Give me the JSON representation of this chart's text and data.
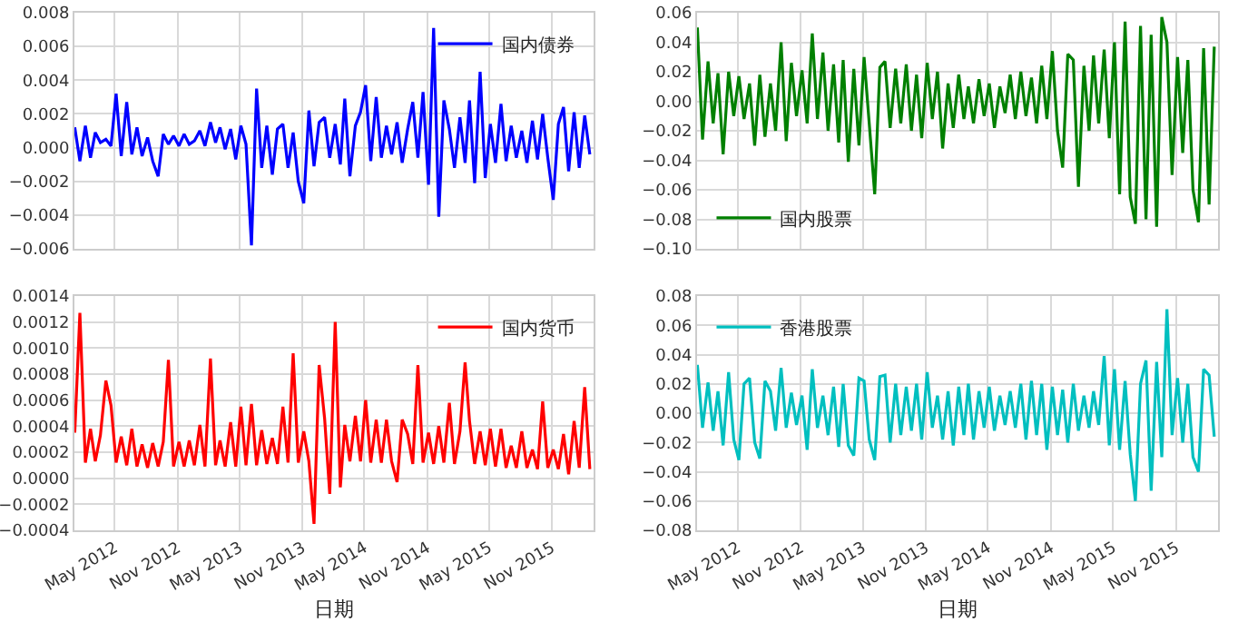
{
  "chart_data": [
    {
      "type": "line",
      "x": [
        "2012-01-05",
        "2012-01-20",
        "2012-02-05",
        "2012-02-20",
        "2012-03-05",
        "2012-03-20",
        "2012-04-05",
        "2012-04-20",
        "2012-05-05",
        "2012-05-20",
        "2012-06-05",
        "2012-06-20",
        "2012-07-05",
        "2012-07-20",
        "2012-08-05",
        "2012-08-20",
        "2012-09-05",
        "2012-09-20",
        "2012-10-05",
        "2012-10-20",
        "2012-11-05",
        "2012-11-20",
        "2012-12-05",
        "2012-12-20",
        "2013-01-05",
        "2013-01-20",
        "2013-02-05",
        "2013-02-20",
        "2013-03-05",
        "2013-03-20",
        "2013-04-05",
        "2013-04-20",
        "2013-05-05",
        "2013-05-20",
        "2013-06-05",
        "2013-06-20",
        "2013-07-05",
        "2013-07-20",
        "2013-08-05",
        "2013-08-20",
        "2013-09-05",
        "2013-09-20",
        "2013-10-05",
        "2013-10-20",
        "2013-11-05",
        "2013-11-20",
        "2013-12-05",
        "2013-12-20",
        "2014-01-05",
        "2014-01-20",
        "2014-02-05",
        "2014-02-20",
        "2014-03-05",
        "2014-03-20",
        "2014-04-05",
        "2014-04-20",
        "2014-05-05",
        "2014-05-20",
        "2014-06-05",
        "2014-06-20",
        "2014-07-05",
        "2014-07-20",
        "2014-08-05",
        "2014-08-20",
        "2014-09-05",
        "2014-09-20",
        "2014-10-05",
        "2014-10-20",
        "2014-11-05",
        "2014-11-20",
        "2014-12-05",
        "2014-12-20",
        "2015-01-05",
        "2015-01-20",
        "2015-02-05",
        "2015-02-20",
        "2015-03-05",
        "2015-03-20",
        "2015-04-05",
        "2015-04-20",
        "2015-05-05",
        "2015-05-20",
        "2015-06-05",
        "2015-06-20",
        "2015-07-05",
        "2015-07-20",
        "2015-08-05",
        "2015-08-20",
        "2015-09-05",
        "2015-09-20",
        "2015-10-05",
        "2015-10-20",
        "2015-11-05",
        "2015-11-20",
        "2015-12-05",
        "2015-12-20",
        "2016-01-05",
        "2016-01-20",
        "2016-02-05",
        "2016-02-20"
      ],
      "series": [
        {
          "name": "国内债券",
          "color": "#0000ff",
          "values": [
            0.0012,
            -0.0008,
            0.0013,
            -0.0006,
            0.0009,
            0.0003,
            0.0005,
            0.0001,
            0.0032,
            -0.0005,
            0.0027,
            -0.0004,
            0.0012,
            -0.0005,
            0.0006,
            -0.0008,
            -0.0017,
            0.0008,
            0.0002,
            0.0007,
            0.0001,
            0.0008,
            0.0002,
            0.0004,
            0.001,
            0.0001,
            0.0015,
            0.0003,
            0.0012,
            -0.0001,
            0.0011,
            -0.0007,
            0.0013,
            0.0002,
            -0.0058,
            0.0035,
            -0.0012,
            0.0013,
            -0.0016,
            0.0011,
            0.0014,
            -0.0012,
            0.0009,
            -0.002,
            -0.0033,
            0.0022,
            -0.0011,
            0.0015,
            0.0018,
            -0.0006,
            0.0014,
            -0.001,
            0.0029,
            -0.0017,
            0.0013,
            0.0021,
            0.0037,
            -0.0008,
            0.003,
            -0.0006,
            0.0013,
            -0.0004,
            0.0015,
            -0.0009,
            0.0011,
            0.0027,
            -0.0006,
            0.0033,
            -0.0022,
            0.0071,
            -0.0041,
            0.0028,
            0.0011,
            -0.0012,
            0.0018,
            -0.0009,
            0.0028,
            -0.0021,
            0.0045,
            -0.0018,
            0.0014,
            -0.0009,
            0.0026,
            -0.0008,
            0.0013,
            -0.0006,
            0.001,
            -0.0009,
            0.0016,
            -0.0007,
            0.002,
            -0.0006,
            -0.0031,
            0.0014,
            0.0024,
            -0.0014,
            0.0021,
            -0.0012,
            0.0019,
            -0.0004
          ]
        }
      ],
      "xlim": [
        "2012-01-04",
        "2016-03-02"
      ],
      "xticks": [
        {
          "value": "2012-05-01",
          "label": null
        },
        {
          "value": "2012-11-01",
          "label": null
        },
        {
          "value": "2013-05-01",
          "label": null
        },
        {
          "value": "2013-11-01",
          "label": null
        },
        {
          "value": "2014-05-01",
          "label": null
        },
        {
          "value": "2014-11-01",
          "label": null
        },
        {
          "value": "2015-05-01",
          "label": null
        },
        {
          "value": "2015-11-01",
          "label": null
        }
      ],
      "ylim": [
        -0.006,
        0.008
      ],
      "yticks": [
        {
          "value": -0.006,
          "label": "−0.006"
        },
        {
          "value": -0.004,
          "label": "−0.004"
        },
        {
          "value": -0.002,
          "label": "−0.002"
        },
        {
          "value": 0,
          "label": "0.000"
        },
        {
          "value": 0.002,
          "label": "0.002"
        },
        {
          "value": 0.004,
          "label": "0.004"
        },
        {
          "value": 0.006,
          "label": "0.006"
        },
        {
          "value": 0.008,
          "label": "0.008"
        }
      ],
      "tick_labels": "y",
      "grid": true,
      "legend": "top right"
    },
    {
      "type": "line",
      "x": [
        "2012-01-05",
        "2012-01-20",
        "2012-02-05",
        "2012-02-20",
        "2012-03-05",
        "2012-03-20",
        "2012-04-05",
        "2012-04-20",
        "2012-05-05",
        "2012-05-20",
        "2012-06-05",
        "2012-06-20",
        "2012-07-05",
        "2012-07-20",
        "2012-08-05",
        "2012-08-20",
        "2012-09-05",
        "2012-09-20",
        "2012-10-05",
        "2012-10-20",
        "2012-11-05",
        "2012-11-20",
        "2012-12-05",
        "2012-12-20",
        "2013-01-05",
        "2013-01-20",
        "2013-02-05",
        "2013-02-20",
        "2013-03-05",
        "2013-03-20",
        "2013-04-05",
        "2013-04-20",
        "2013-05-05",
        "2013-05-20",
        "2013-06-05",
        "2013-06-20",
        "2013-07-05",
        "2013-07-20",
        "2013-08-05",
        "2013-08-20",
        "2013-09-05",
        "2013-09-20",
        "2013-10-05",
        "2013-10-20",
        "2013-11-05",
        "2013-11-20",
        "2013-12-05",
        "2013-12-20",
        "2014-01-05",
        "2014-01-20",
        "2014-02-05",
        "2014-02-20",
        "2014-03-05",
        "2014-03-20",
        "2014-04-05",
        "2014-04-20",
        "2014-05-05",
        "2014-05-20",
        "2014-06-05",
        "2014-06-20",
        "2014-07-05",
        "2014-07-20",
        "2014-08-05",
        "2014-08-20",
        "2014-09-05",
        "2014-09-20",
        "2014-10-05",
        "2014-10-20",
        "2014-11-05",
        "2014-11-20",
        "2014-12-05",
        "2014-12-20",
        "2015-01-05",
        "2015-01-20",
        "2015-02-05",
        "2015-02-20",
        "2015-03-05",
        "2015-03-20",
        "2015-04-05",
        "2015-04-20",
        "2015-05-05",
        "2015-05-20",
        "2015-06-05",
        "2015-06-20",
        "2015-07-05",
        "2015-07-20",
        "2015-08-05",
        "2015-08-20",
        "2015-09-05",
        "2015-09-20",
        "2015-10-05",
        "2015-10-20",
        "2015-11-05",
        "2015-11-20",
        "2015-12-05",
        "2015-12-20",
        "2016-01-05",
        "2016-01-20",
        "2016-02-05",
        "2016-02-20"
      ],
      "series": [
        {
          "name": "国内股票",
          "color": "#008000",
          "values": [
            0.05,
            -0.026,
            0.027,
            -0.015,
            0.019,
            -0.036,
            0.02,
            -0.01,
            0.017,
            -0.012,
            0.012,
            -0.03,
            0.018,
            -0.024,
            0.012,
            -0.02,
            0.04,
            -0.027,
            0.026,
            -0.01,
            0.021,
            -0.015,
            0.046,
            -0.012,
            0.033,
            -0.02,
            0.025,
            -0.028,
            0.028,
            -0.041,
            0.022,
            -0.03,
            0.03,
            -0.015,
            -0.063,
            0.023,
            0.027,
            -0.018,
            0.022,
            -0.015,
            0.025,
            -0.02,
            0.018,
            -0.025,
            0.026,
            -0.012,
            0.02,
            -0.032,
            0.012,
            -0.018,
            0.018,
            -0.012,
            0.01,
            -0.015,
            0.015,
            -0.01,
            0.012,
            -0.018,
            0.01,
            -0.008,
            0.018,
            -0.012,
            0.02,
            -0.01,
            0.016,
            -0.015,
            0.024,
            -0.012,
            0.034,
            -0.02,
            -0.045,
            0.032,
            0.028,
            -0.058,
            0.024,
            -0.02,
            0.031,
            -0.015,
            0.035,
            -0.025,
            0.04,
            -0.063,
            0.054,
            -0.065,
            -0.083,
            0.051,
            -0.08,
            0.045,
            -0.085,
            0.057,
            0.04,
            -0.05,
            0.03,
            -0.035,
            0.028,
            -0.06,
            -0.082,
            0.036,
            -0.07,
            0.037
          ]
        }
      ],
      "xlim": [
        "2012-01-04",
        "2016-03-02"
      ],
      "xticks": [
        {
          "value": "2012-05-01",
          "label": null
        },
        {
          "value": "2012-11-01",
          "label": null
        },
        {
          "value": "2013-05-01",
          "label": null
        },
        {
          "value": "2013-11-01",
          "label": null
        },
        {
          "value": "2014-05-01",
          "label": null
        },
        {
          "value": "2014-11-01",
          "label": null
        },
        {
          "value": "2015-05-01",
          "label": null
        },
        {
          "value": "2015-11-01",
          "label": null
        }
      ],
      "ylim": [
        -0.1,
        0.06
      ],
      "yticks": [
        {
          "value": -0.1,
          "label": "−0.10"
        },
        {
          "value": -0.08,
          "label": "−0.08"
        },
        {
          "value": -0.06,
          "label": "−0.06"
        },
        {
          "value": -0.04,
          "label": "−0.04"
        },
        {
          "value": -0.02,
          "label": "−0.02"
        },
        {
          "value": 0,
          "label": "0.00"
        },
        {
          "value": 0.02,
          "label": "0.02"
        },
        {
          "value": 0.04,
          "label": "0.04"
        },
        {
          "value": 0.06,
          "label": "0.06"
        }
      ],
      "tick_labels": "y",
      "grid": true,
      "legend": "bottom left"
    },
    {
      "type": "line",
      "xlabel": "日期",
      "x": [
        "2012-01-05",
        "2012-01-20",
        "2012-02-05",
        "2012-02-20",
        "2012-03-05",
        "2012-03-20",
        "2012-04-05",
        "2012-04-20",
        "2012-05-05",
        "2012-05-20",
        "2012-06-05",
        "2012-06-20",
        "2012-07-05",
        "2012-07-20",
        "2012-08-05",
        "2012-08-20",
        "2012-09-05",
        "2012-09-20",
        "2012-10-05",
        "2012-10-20",
        "2012-11-05",
        "2012-11-20",
        "2012-12-05",
        "2012-12-20",
        "2013-01-05",
        "2013-01-20",
        "2013-02-05",
        "2013-02-20",
        "2013-03-05",
        "2013-03-20",
        "2013-04-05",
        "2013-04-20",
        "2013-05-05",
        "2013-05-20",
        "2013-06-05",
        "2013-06-20",
        "2013-07-05",
        "2013-07-20",
        "2013-08-05",
        "2013-08-20",
        "2013-09-05",
        "2013-09-20",
        "2013-10-05",
        "2013-10-20",
        "2013-11-05",
        "2013-11-20",
        "2013-12-05",
        "2013-12-20",
        "2014-01-05",
        "2014-01-20",
        "2014-02-05",
        "2014-02-20",
        "2014-03-05",
        "2014-03-20",
        "2014-04-05",
        "2014-04-20",
        "2014-05-05",
        "2014-05-20",
        "2014-06-05",
        "2014-06-20",
        "2014-07-05",
        "2014-07-20",
        "2014-08-05",
        "2014-08-20",
        "2014-09-05",
        "2014-09-20",
        "2014-10-05",
        "2014-10-20",
        "2014-11-05",
        "2014-11-20",
        "2014-12-05",
        "2014-12-20",
        "2015-01-05",
        "2015-01-20",
        "2015-02-05",
        "2015-02-20",
        "2015-03-05",
        "2015-03-20",
        "2015-04-05",
        "2015-04-20",
        "2015-05-05",
        "2015-05-20",
        "2015-06-05",
        "2015-06-20",
        "2015-07-05",
        "2015-07-20",
        "2015-08-05",
        "2015-08-20",
        "2015-09-05",
        "2015-09-20",
        "2015-10-05",
        "2015-10-20",
        "2015-11-05",
        "2015-11-20",
        "2015-12-05",
        "2015-12-20",
        "2016-01-05",
        "2016-01-20",
        "2016-02-05",
        "2016-02-20"
      ],
      "series": [
        {
          "name": "国内货币",
          "color": "#ff0000",
          "values": [
            0.00035,
            0.00127,
            0.00012,
            0.00038,
            0.00013,
            0.00033,
            0.00075,
            0.00056,
            0.00012,
            0.00032,
            0.0001,
            0.00038,
            9e-05,
            0.00026,
            8e-05,
            0.00027,
            9e-05,
            0.00028,
            0.00091,
            9e-05,
            0.00028,
            9e-05,
            0.00029,
            0.0001,
            0.00041,
            9e-05,
            0.00092,
            0.0001,
            0.00029,
            9e-05,
            0.00043,
            9e-05,
            0.00055,
            0.0001,
            0.00057,
            0.0001,
            0.00037,
            0.00011,
            0.00031,
            0.00011,
            0.00055,
            0.00012,
            0.00096,
            0.00012,
            0.00036,
            0.00013,
            -0.00035,
            0.00087,
            0.00046,
            -0.00012,
            0.0012,
            -7e-05,
            0.00041,
            0.00013,
            0.00048,
            0.00013,
            0.0006,
            0.00012,
            0.00045,
            0.00012,
            0.00045,
            0.00013,
            -3e-05,
            0.00045,
            0.00034,
            0.00011,
            0.00087,
            0.00012,
            0.00035,
            0.00011,
            0.0004,
            0.00012,
            0.00058,
            0.00011,
            0.00036,
            0.00089,
            0.00044,
            0.00011,
            0.00036,
            0.0001,
            0.00038,
            9e-05,
            0.00038,
            8e-05,
            0.00025,
            8e-05,
            0.00036,
            8e-05,
            0.00022,
            7e-05,
            0.00059,
            8e-05,
            0.00022,
            7e-05,
            0.00034,
            3e-05,
            0.00044,
            8e-05,
            0.0007,
            7e-05
          ]
        }
      ],
      "xlim": [
        "2012-01-04",
        "2016-03-02"
      ],
      "xticks": [
        {
          "value": "2012-05-01",
          "label": "May 2012"
        },
        {
          "value": "2012-11-01",
          "label": "Nov 2012"
        },
        {
          "value": "2013-05-01",
          "label": "May 2013"
        },
        {
          "value": "2013-11-01",
          "label": "Nov 2013"
        },
        {
          "value": "2014-05-01",
          "label": "May 2014"
        },
        {
          "value": "2014-11-01",
          "label": "Nov 2014"
        },
        {
          "value": "2015-05-01",
          "label": "May 2015"
        },
        {
          "value": "2015-11-01",
          "label": "Nov 2015"
        }
      ],
      "ylim": [
        -0.0004,
        0.0014
      ],
      "yticks": [
        {
          "value": -0.0004,
          "label": "−0.0004"
        },
        {
          "value": -0.0002,
          "label": "−0.0002"
        },
        {
          "value": 0,
          "label": "0.0000"
        },
        {
          "value": 0.0002,
          "label": "0.0002"
        },
        {
          "value": 0.0004,
          "label": "0.0004"
        },
        {
          "value": 0.0006,
          "label": "0.0006"
        },
        {
          "value": 0.0008,
          "label": "0.0008"
        },
        {
          "value": 0.001,
          "label": "0.0010"
        },
        {
          "value": 0.0012,
          "label": "0.0012"
        },
        {
          "value": 0.0014,
          "label": "0.0014"
        }
      ],
      "grid": true,
      "legend": "top right"
    },
    {
      "type": "line",
      "xlabel": "日期",
      "x": [
        "2012-01-05",
        "2012-01-20",
        "2012-02-05",
        "2012-02-20",
        "2012-03-05",
        "2012-03-20",
        "2012-04-05",
        "2012-04-20",
        "2012-05-05",
        "2012-05-20",
        "2012-06-05",
        "2012-06-20",
        "2012-07-05",
        "2012-07-20",
        "2012-08-05",
        "2012-08-20",
        "2012-09-05",
        "2012-09-20",
        "2012-10-05",
        "2012-10-20",
        "2012-11-05",
        "2012-11-20",
        "2012-12-05",
        "2012-12-20",
        "2013-01-05",
        "2013-01-20",
        "2013-02-05",
        "2013-02-20",
        "2013-03-05",
        "2013-03-20",
        "2013-04-05",
        "2013-04-20",
        "2013-05-05",
        "2013-05-20",
        "2013-06-05",
        "2013-06-20",
        "2013-07-05",
        "2013-07-20",
        "2013-08-05",
        "2013-08-20",
        "2013-09-05",
        "2013-09-20",
        "2013-10-05",
        "2013-10-20",
        "2013-11-05",
        "2013-11-20",
        "2013-12-05",
        "2013-12-20",
        "2014-01-05",
        "2014-01-20",
        "2014-02-05",
        "2014-02-20",
        "2014-03-05",
        "2014-03-20",
        "2014-04-05",
        "2014-04-20",
        "2014-05-05",
        "2014-05-20",
        "2014-06-05",
        "2014-06-20",
        "2014-07-05",
        "2014-07-20",
        "2014-08-05",
        "2014-08-20",
        "2014-09-05",
        "2014-09-20",
        "2014-10-05",
        "2014-10-20",
        "2014-11-05",
        "2014-11-20",
        "2014-12-05",
        "2014-12-20",
        "2015-01-05",
        "2015-01-20",
        "2015-02-05",
        "2015-02-20",
        "2015-03-05",
        "2015-03-20",
        "2015-04-05",
        "2015-04-20",
        "2015-05-05",
        "2015-05-20",
        "2015-06-05",
        "2015-06-20",
        "2015-07-05",
        "2015-07-20",
        "2015-08-05",
        "2015-08-20",
        "2015-09-05",
        "2015-09-20",
        "2015-10-05",
        "2015-10-20",
        "2015-11-05",
        "2015-11-20",
        "2015-12-05",
        "2015-12-20",
        "2016-01-05",
        "2016-01-20",
        "2016-02-05",
        "2016-02-20"
      ],
      "series": [
        {
          "name": "香港股票",
          "color": "#00bfbf",
          "values": [
            0.033,
            -0.01,
            0.021,
            -0.012,
            0.015,
            -0.022,
            0.028,
            -0.018,
            -0.032,
            0.02,
            0.024,
            -0.02,
            -0.031,
            0.022,
            0.015,
            -0.012,
            0.031,
            -0.01,
            0.014,
            -0.008,
            0.012,
            -0.025,
            0.03,
            -0.01,
            0.012,
            -0.015,
            0.018,
            -0.023,
            0.02,
            -0.022,
            -0.029,
            0.024,
            0.022,
            -0.018,
            -0.032,
            0.025,
            0.026,
            -0.02,
            0.02,
            -0.015,
            0.018,
            -0.012,
            0.02,
            -0.018,
            0.028,
            -0.01,
            0.012,
            -0.018,
            0.015,
            -0.022,
            0.018,
            -0.015,
            0.02,
            -0.018,
            0.015,
            -0.01,
            0.018,
            -0.012,
            0.012,
            -0.008,
            0.015,
            -0.01,
            0.02,
            -0.018,
            0.022,
            -0.015,
            0.02,
            -0.025,
            0.018,
            -0.015,
            0.016,
            -0.02,
            0.02,
            -0.012,
            0.012,
            -0.01,
            0.015,
            -0.008,
            0.039,
            -0.022,
            0.03,
            -0.025,
            0.022,
            -0.028,
            -0.06,
            0.02,
            0.036,
            -0.053,
            0.035,
            -0.03,
            0.071,
            -0.015,
            0.024,
            -0.02,
            0.02,
            -0.03,
            -0.04,
            0.03,
            0.026,
            -0.016
          ]
        }
      ],
      "xlim": [
        "2012-01-04",
        "2016-03-02"
      ],
      "xticks": [
        {
          "value": "2012-05-01",
          "label": "May 2012"
        },
        {
          "value": "2012-11-01",
          "label": "Nov 2012"
        },
        {
          "value": "2013-05-01",
          "label": "May 2013"
        },
        {
          "value": "2013-11-01",
          "label": "Nov 2013"
        },
        {
          "value": "2014-05-01",
          "label": "May 2014"
        },
        {
          "value": "2014-11-01",
          "label": "Nov 2014"
        },
        {
          "value": "2015-05-01",
          "label": "May 2015"
        },
        {
          "value": "2015-11-01",
          "label": "Nov 2015"
        }
      ],
      "ylim": [
        -0.08,
        0.08
      ],
      "yticks": [
        {
          "value": -0.08,
          "label": "−0.08"
        },
        {
          "value": -0.06,
          "label": "−0.06"
        },
        {
          "value": -0.04,
          "label": "−0.04"
        },
        {
          "value": -0.02,
          "label": "−0.02"
        },
        {
          "value": 0,
          "label": "0.00"
        },
        {
          "value": 0.02,
          "label": "0.02"
        },
        {
          "value": 0.04,
          "label": "0.04"
        },
        {
          "value": 0.06,
          "label": "0.06"
        },
        {
          "value": 0.08,
          "label": "0.08"
        }
      ],
      "grid": true,
      "legend": "top left"
    }
  ]
}
